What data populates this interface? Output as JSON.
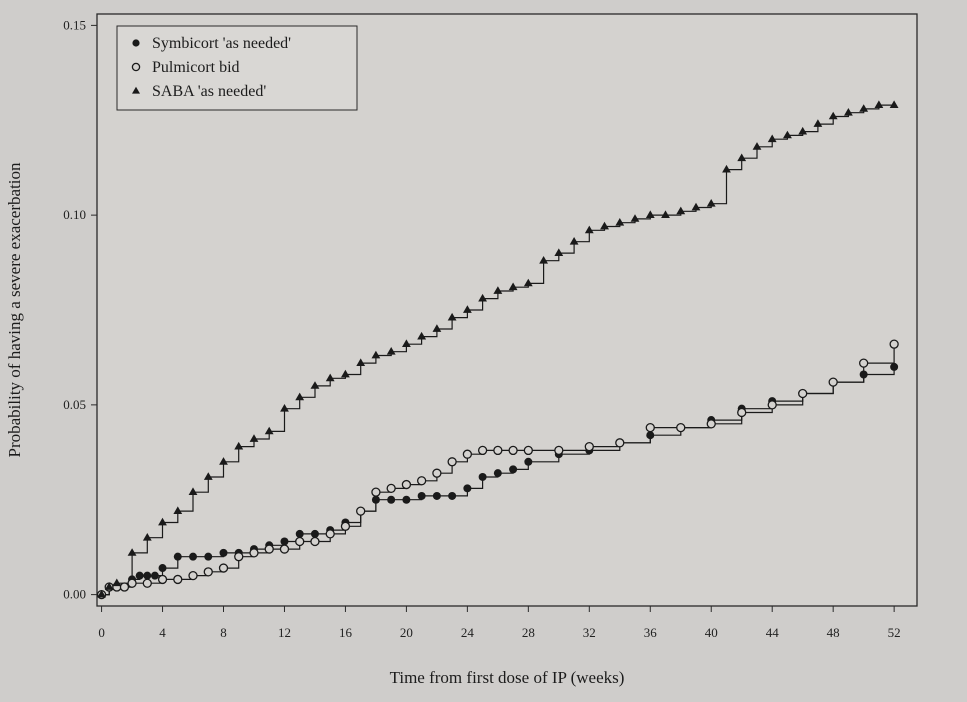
{
  "chart_data": {
    "type": "line",
    "title": "",
    "xlabel": "Time from first dose of IP (weeks)",
    "ylabel": "Probability of having a severe exacerbation",
    "xlim": [
      -0.3,
      53.5
    ],
    "ylim": [
      -0.003,
      0.153
    ],
    "x_ticks": [
      0,
      4,
      8,
      12,
      16,
      20,
      24,
      28,
      32,
      36,
      40,
      44,
      48,
      52
    ],
    "y_ticks": [
      0.0,
      0.05,
      0.1,
      0.15
    ],
    "x_tick_labels": [
      "0",
      "4",
      "8",
      "12",
      "16",
      "20",
      "24",
      "28",
      "32",
      "36",
      "40",
      "44",
      "48",
      "52"
    ],
    "y_tick_labels": [
      "0.00",
      "0.05",
      "0.10",
      "0.15"
    ],
    "grid": false,
    "legend_position": "top-left",
    "series": [
      {
        "name": "Symbicort 'as needed'",
        "marker": "filled-circle",
        "color": "#1a1a1a",
        "x": [
          0,
          0.5,
          1,
          1.5,
          2,
          2.5,
          3,
          3.5,
          4,
          5,
          6,
          7,
          8,
          9,
          10,
          11,
          12,
          13,
          14,
          15,
          16,
          17,
          18,
          19,
          20,
          21,
          22,
          23,
          24,
          25,
          26,
          27,
          28,
          30,
          32,
          34,
          36,
          38,
          40,
          42,
          44,
          46,
          48,
          50,
          52
        ],
        "y": [
          0.0,
          0.002,
          0.002,
          0.002,
          0.004,
          0.005,
          0.005,
          0.005,
          0.007,
          0.01,
          0.01,
          0.01,
          0.011,
          0.011,
          0.012,
          0.013,
          0.014,
          0.016,
          0.016,
          0.017,
          0.019,
          0.022,
          0.025,
          0.025,
          0.025,
          0.026,
          0.026,
          0.026,
          0.028,
          0.031,
          0.032,
          0.033,
          0.035,
          0.037,
          0.038,
          0.04,
          0.042,
          0.044,
          0.046,
          0.049,
          0.051,
          0.053,
          0.056,
          0.058,
          0.06
        ]
      },
      {
        "name": "Pulmicort bid",
        "marker": "open-circle",
        "color": "#1a1a1a",
        "x": [
          0,
          0.5,
          1,
          1.5,
          2,
          3,
          4,
          5,
          6,
          7,
          8,
          9,
          10,
          11,
          12,
          13,
          14,
          15,
          16,
          17,
          18,
          19,
          20,
          21,
          22,
          23,
          24,
          25,
          26,
          27,
          28,
          30,
          32,
          34,
          36,
          38,
          40,
          42,
          44,
          46,
          48,
          50,
          52
        ],
        "y": [
          0.0,
          0.002,
          0.002,
          0.002,
          0.003,
          0.003,
          0.004,
          0.004,
          0.005,
          0.006,
          0.007,
          0.01,
          0.011,
          0.012,
          0.012,
          0.014,
          0.014,
          0.016,
          0.018,
          0.022,
          0.027,
          0.028,
          0.029,
          0.03,
          0.032,
          0.035,
          0.037,
          0.038,
          0.038,
          0.038,
          0.038,
          0.038,
          0.039,
          0.04,
          0.044,
          0.044,
          0.045,
          0.048,
          0.05,
          0.053,
          0.056,
          0.061,
          0.066
        ]
      },
      {
        "name": "SABA 'as needed'",
        "marker": "filled-triangle",
        "color": "#1a1a1a",
        "x": [
          0,
          0.5,
          1,
          2,
          3,
          4,
          5,
          6,
          7,
          8,
          9,
          10,
          11,
          12,
          13,
          14,
          15,
          16,
          17,
          18,
          19,
          20,
          21,
          22,
          23,
          24,
          25,
          26,
          27,
          28,
          29,
          30,
          31,
          32,
          33,
          34,
          35,
          36,
          37,
          38,
          39,
          40,
          41,
          42,
          43,
          44,
          45,
          46,
          47,
          48,
          49,
          50,
          51,
          52
        ],
        "y": [
          0.0,
          0.002,
          0.003,
          0.011,
          0.015,
          0.019,
          0.022,
          0.027,
          0.031,
          0.035,
          0.039,
          0.041,
          0.043,
          0.049,
          0.052,
          0.055,
          0.057,
          0.058,
          0.061,
          0.063,
          0.064,
          0.066,
          0.068,
          0.07,
          0.073,
          0.075,
          0.078,
          0.08,
          0.081,
          0.082,
          0.088,
          0.09,
          0.093,
          0.096,
          0.097,
          0.098,
          0.099,
          0.1,
          0.1,
          0.101,
          0.102,
          0.103,
          0.112,
          0.115,
          0.118,
          0.12,
          0.121,
          0.122,
          0.124,
          0.126,
          0.127,
          0.128,
          0.129,
          0.129
        ]
      }
    ]
  }
}
